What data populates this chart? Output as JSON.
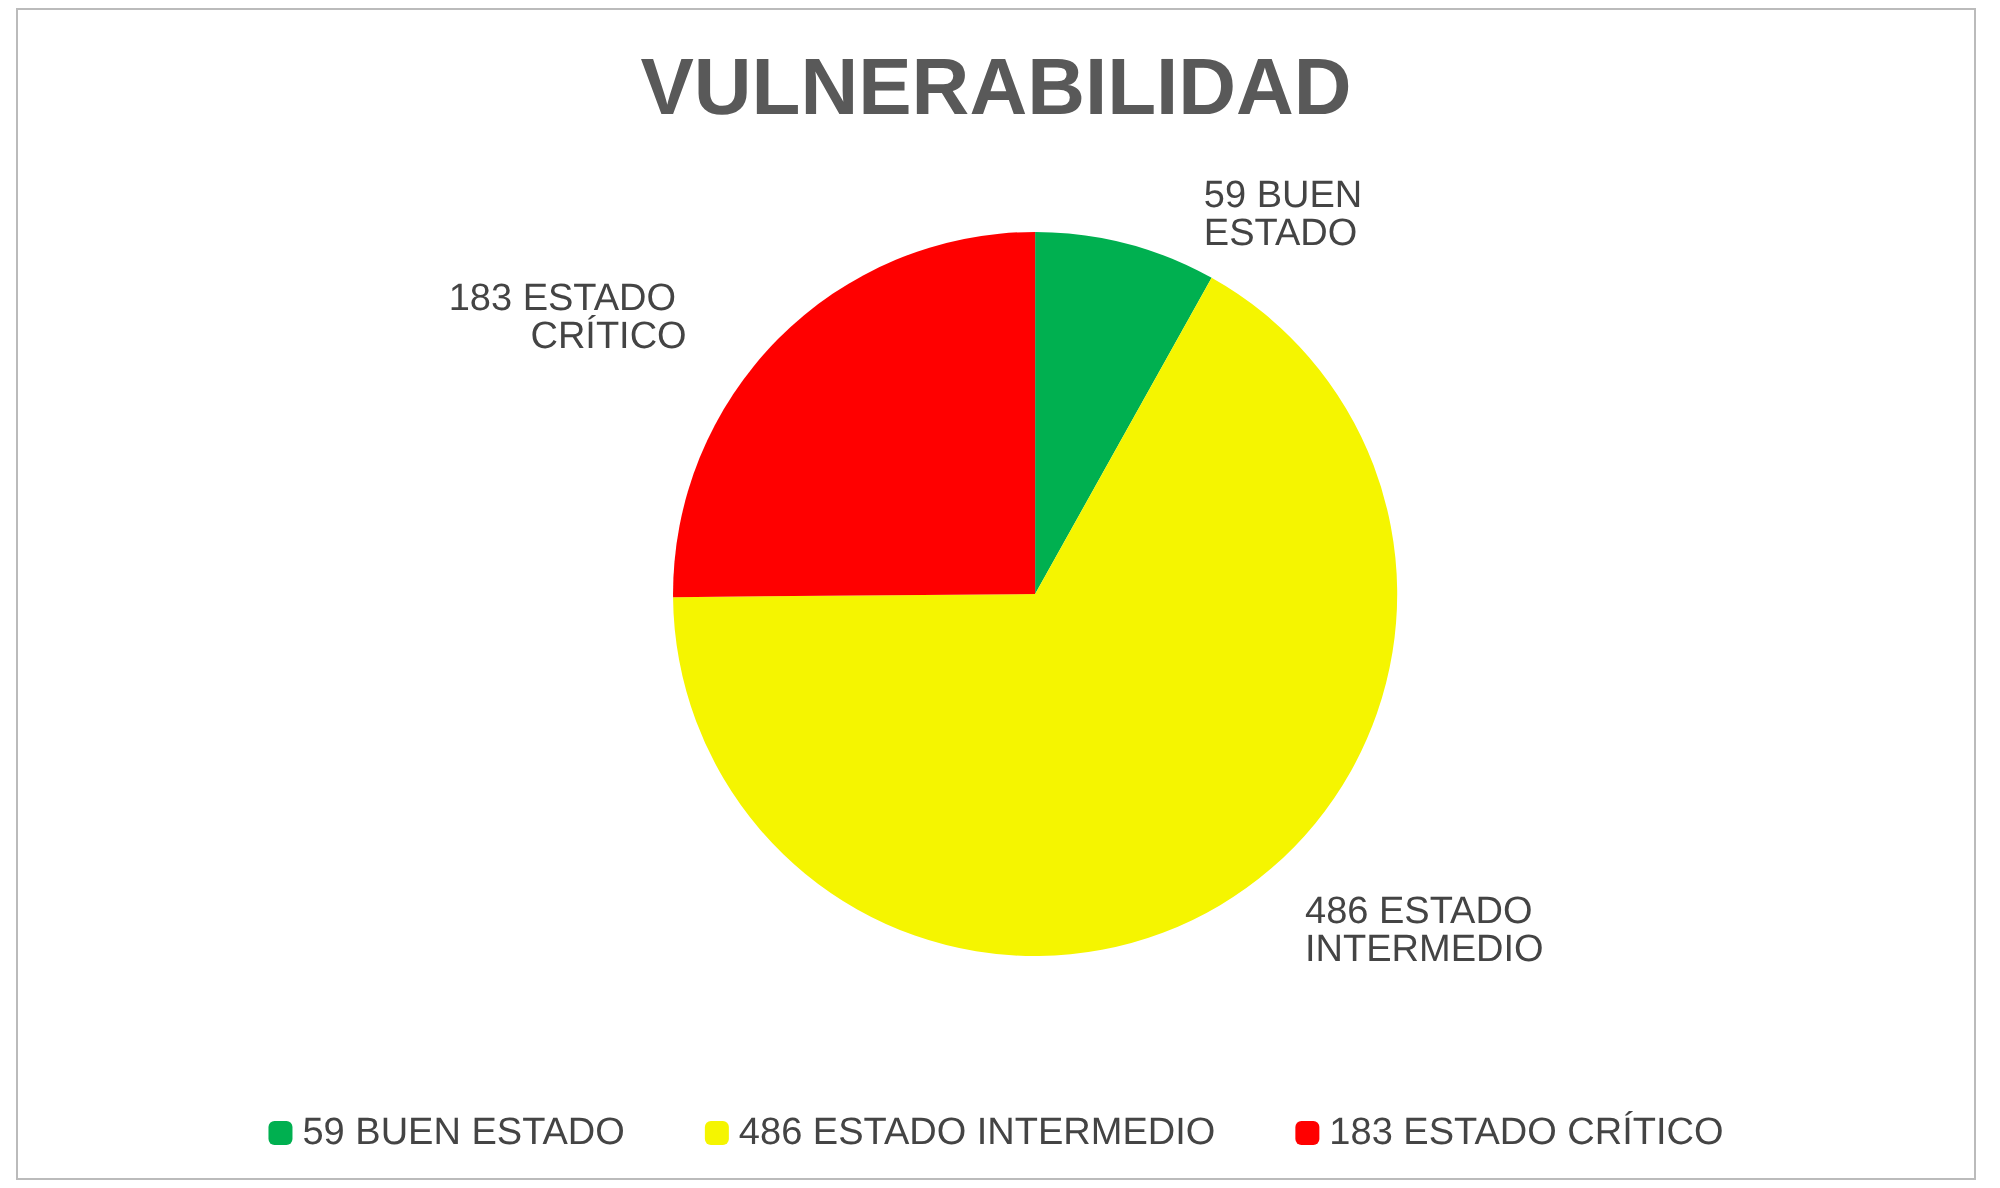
{
  "chart_data": {
    "type": "pie",
    "title": "VULNERABILIDAD",
    "categories": [
      "59 BUEN ESTADO",
      "486 ESTADO INTERMEDIO",
      "183 ESTADO CRÍTICO"
    ],
    "values": [
      59,
      486,
      183
    ],
    "colors": [
      "#00b050",
      "#f5f500",
      "#ff0000"
    ],
    "legend": "bottom"
  }
}
